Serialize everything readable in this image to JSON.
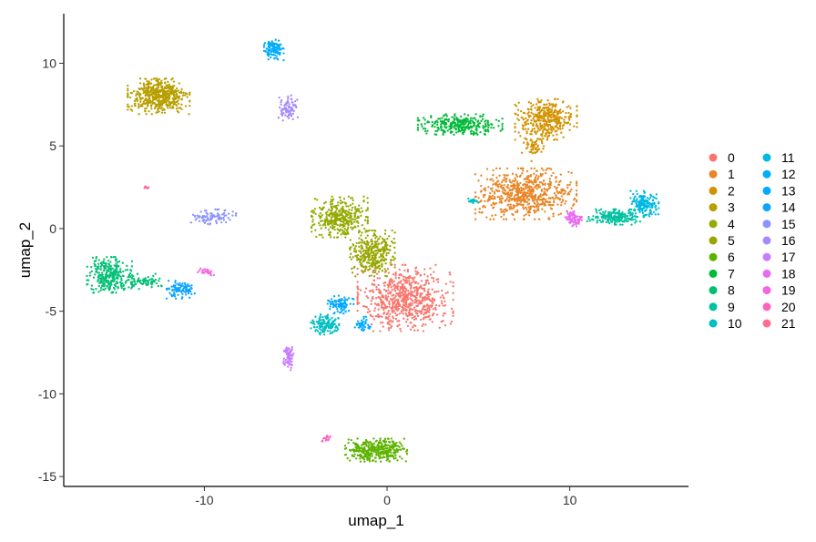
{
  "chart_data": {
    "type": "scatter",
    "xlabel": "umap_1",
    "ylabel": "umap_2",
    "xlim": [
      -17.7,
      16.5
    ],
    "ylim": [
      -15.6,
      13
    ],
    "xticks": [
      -10,
      0,
      10
    ],
    "yticks": [
      -15,
      -10,
      -5,
      0,
      5,
      10
    ],
    "grid": false,
    "legend_position": "right",
    "series": [
      {
        "name": "0",
        "color": "#F8766D",
        "clusters": [
          {
            "cx": 1.0,
            "cy": -4.2,
            "sx": 1.7,
            "sy": 1.3,
            "n": 700
          }
        ]
      },
      {
        "name": "1",
        "color": "#E88526",
        "clusters": [
          {
            "cx": 7.6,
            "cy": 2.1,
            "sx": 1.8,
            "sy": 1.0,
            "n": 650
          }
        ]
      },
      {
        "name": "2",
        "color": "#D39200",
        "clusters": [
          {
            "cx": 8.7,
            "cy": 6.6,
            "sx": 1.1,
            "sy": 0.8,
            "n": 380
          },
          {
            "cx": 8.0,
            "cy": 5.0,
            "sx": 0.4,
            "sy": 0.6,
            "n": 60
          }
        ]
      },
      {
        "name": "3",
        "color": "#B79F00",
        "clusters": [
          {
            "cx": -12.5,
            "cy": 8.0,
            "sx": 1.1,
            "sy": 0.7,
            "n": 520
          }
        ]
      },
      {
        "name": "4",
        "color": "#93AA00",
        "clusters": [
          {
            "cx": -2.6,
            "cy": 0.7,
            "sx": 1.0,
            "sy": 0.8,
            "n": 380
          }
        ]
      },
      {
        "name": "5",
        "color": "#97A600",
        "clusters": [
          {
            "cx": -0.8,
            "cy": -1.5,
            "sx": 0.8,
            "sy": 0.9,
            "n": 330
          }
        ]
      },
      {
        "name": "6",
        "color": "#5EB300",
        "clusters": [
          {
            "cx": -0.6,
            "cy": -13.4,
            "sx": 1.1,
            "sy": 0.45,
            "n": 380
          }
        ]
      },
      {
        "name": "7",
        "color": "#00BA38",
        "clusters": [
          {
            "cx": 4.0,
            "cy": 6.3,
            "sx": 1.5,
            "sy": 0.4,
            "n": 300
          }
        ]
      },
      {
        "name": "8",
        "color": "#00BF74",
        "clusters": [
          {
            "cx": -15.2,
            "cy": -2.8,
            "sx": 0.8,
            "sy": 0.7,
            "n": 280
          },
          {
            "cx": -13.3,
            "cy": -3.2,
            "sx": 0.8,
            "sy": 0.3,
            "n": 80
          }
        ]
      },
      {
        "name": "9",
        "color": "#00C19F",
        "clusters": [
          {
            "cx": 12.5,
            "cy": 0.7,
            "sx": 1.0,
            "sy": 0.3,
            "n": 200
          }
        ]
      },
      {
        "name": "10",
        "color": "#00BFC4",
        "clusters": [
          {
            "cx": -3.4,
            "cy": -5.8,
            "sx": 0.5,
            "sy": 0.4,
            "n": 130
          },
          {
            "cx": 4.7,
            "cy": 1.7,
            "sx": 0.2,
            "sy": 0.1,
            "n": 20
          }
        ]
      },
      {
        "name": "11",
        "color": "#00B9E3",
        "clusters": [
          {
            "cx": 14.1,
            "cy": 1.5,
            "sx": 0.5,
            "sy": 0.5,
            "n": 170
          }
        ]
      },
      {
        "name": "12",
        "color": "#00ADFA",
        "clusters": [
          {
            "cx": -6.2,
            "cy": 10.8,
            "sx": 0.35,
            "sy": 0.4,
            "n": 110
          }
        ]
      },
      {
        "name": "13",
        "color": "#00A9FF",
        "clusters": [
          {
            "cx": -2.6,
            "cy": -4.6,
            "sx": 0.5,
            "sy": 0.35,
            "n": 90
          },
          {
            "cx": -1.3,
            "cy": -5.8,
            "sx": 0.3,
            "sy": 0.3,
            "n": 40
          }
        ]
      },
      {
        "name": "14",
        "color": "#0CA4FF",
        "clusters": [
          {
            "cx": -11.3,
            "cy": -3.7,
            "sx": 0.5,
            "sy": 0.35,
            "n": 100
          }
        ]
      },
      {
        "name": "15",
        "color": "#8B93FF",
        "clusters": [
          {
            "cx": -9.5,
            "cy": 0.7,
            "sx": 0.8,
            "sy": 0.3,
            "n": 90
          }
        ]
      },
      {
        "name": "16",
        "color": "#A58AFF",
        "clusters": [
          {
            "cx": -5.4,
            "cy": 7.3,
            "sx": 0.35,
            "sy": 0.5,
            "n": 80
          }
        ]
      },
      {
        "name": "17",
        "color": "#C77CFF",
        "clusters": [
          {
            "cx": -5.4,
            "cy": -7.8,
            "sx": 0.2,
            "sy": 0.5,
            "n": 70
          }
        ]
      },
      {
        "name": "18",
        "color": "#E76BF3",
        "clusters": [
          {
            "cx": 10.2,
            "cy": 0.6,
            "sx": 0.3,
            "sy": 0.3,
            "n": 70
          }
        ]
      },
      {
        "name": "19",
        "color": "#F564E3",
        "clusters": [
          {
            "cx": -9.9,
            "cy": -2.6,
            "sx": 0.3,
            "sy": 0.15,
            "n": 25
          }
        ]
      },
      {
        "name": "20",
        "color": "#FF62BC",
        "clusters": [
          {
            "cx": -3.3,
            "cy": -12.7,
            "sx": 0.2,
            "sy": 0.15,
            "n": 15
          }
        ]
      },
      {
        "name": "21",
        "color": "#FF6C91",
        "clusters": [
          {
            "cx": -13.2,
            "cy": 2.5,
            "sx": 0.1,
            "sy": 0.05,
            "n": 8
          }
        ]
      }
    ]
  }
}
